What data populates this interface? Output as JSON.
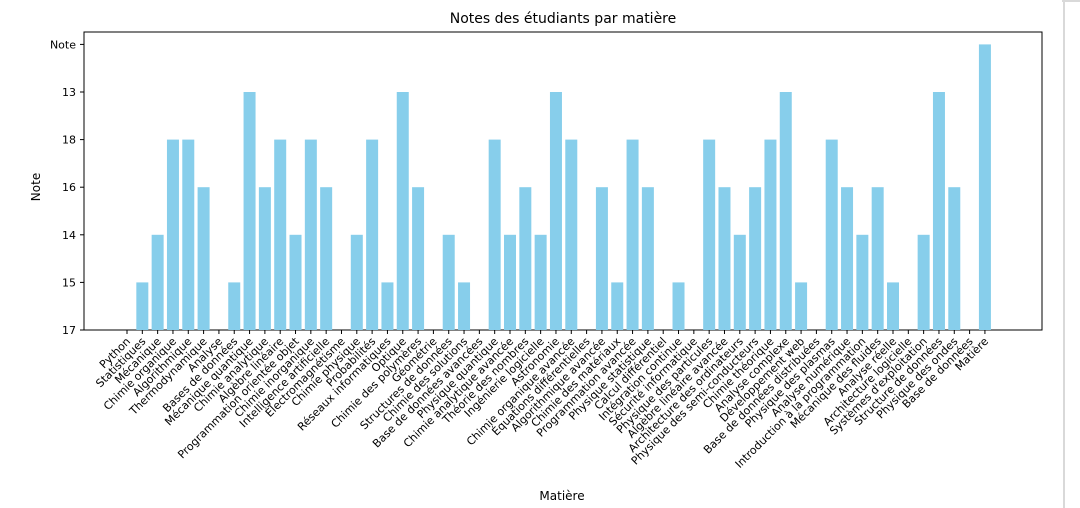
{
  "chart_data": {
    "type": "bar",
    "title": "Notes des étudiants par matière",
    "xlabel": "Matière",
    "ylabel": "Note",
    "bar_color": "#87ceeb",
    "y_categories": [
      "17",
      "15",
      "14",
      "16",
      "18",
      "13",
      "Note"
    ],
    "categories": [
      "Python",
      "Statistiques",
      "Mécanique",
      "Chimie organique",
      "Algorithmique",
      "Thermodynamique",
      "Analyse",
      "Bases de données",
      "Mécanique quantique",
      "Chimie analytique",
      "Algèbre linéaire",
      "Programmation orientée objet",
      "Chimie inorganique",
      "Intelligence artificielle",
      "Électromagnétisme",
      "Chimie physique",
      "Probabilités",
      "Réseaux informatiques",
      "Optique",
      "Chimie des polymères",
      "Géométrie",
      "Structures de données",
      "Chimie des solutions",
      "Base de données avancées",
      "Physique quantique",
      "Chimie analytique avancée",
      "Théorie des nombres",
      "Ingénierie logicielle",
      "Astronomie",
      "Chimie organique avancée",
      "Équations différentielles",
      "Algorithmique avancée",
      "Chimie des matériaux",
      "Programmation avancée",
      "Physique statistique",
      "Calcul différentiel",
      "Intégration continue",
      "Sécurité informatique",
      "Physique des particules",
      "Algèbre linéaire avancée",
      "Architecture des ordinateurs",
      "Physique des semi-conducteurs",
      "Chimie théorique",
      "Analyse complexe",
      "Développement web",
      "Base de données distribuées",
      "Physique des plasmas",
      "Analyse numérique",
      "Introduction à la programmation",
      "Mécanique des fluides",
      "Analyse réelle",
      "Architecture logicielle",
      "Systèmes d'exploitation",
      "Structure de données",
      "Physique des ondes",
      "Base de données",
      "Matière"
    ],
    "values": [
      "17",
      "15",
      "14",
      "18",
      "18",
      "16",
      "17",
      "15",
      "13",
      "16",
      "18",
      "14",
      "18",
      "16",
      "17",
      "14",
      "18",
      "15",
      "13",
      "16",
      "17",
      "14",
      "15",
      "17",
      "18",
      "14",
      "16",
      "14",
      "13",
      "18",
      "17",
      "16",
      "15",
      "18",
      "16",
      "17",
      "15",
      "17",
      "18",
      "16",
      "14",
      "16",
      "18",
      "13",
      "15",
      "17",
      "18",
      "16",
      "14",
      "16",
      "15",
      "17",
      "14",
      "13",
      "16",
      "17",
      "Note"
    ],
    "grid": false,
    "legend": "none"
  }
}
